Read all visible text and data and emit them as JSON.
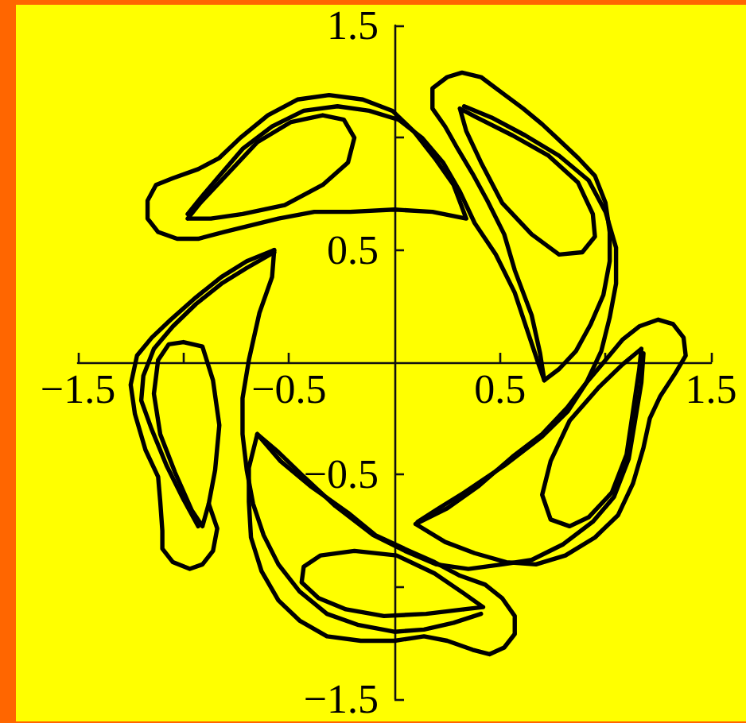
{
  "chart_data": {
    "type": "line",
    "xlim": [
      -1.5,
      1.5
    ],
    "ylim": [
      -1.5,
      1.5
    ],
    "xticks": [
      {
        "value": -1.5,
        "label": "−1.5"
      },
      {
        "value": -1,
        "label": null
      },
      {
        "value": -0.5,
        "label": "−0.5"
      },
      0.5,
      {
        "value": 1,
        "label": null
      },
      1.5
    ],
    "yticks": [
      {
        "value": -1.5,
        "label": "−1.5"
      },
      {
        "value": -1,
        "label": null
      },
      {
        "value": -0.5,
        "label": "−0.5"
      },
      0.5,
      {
        "value": 1,
        "label": null
      },
      1.5
    ],
    "grid": false,
    "marker": "none",
    "series": [
      {
        "color": "#000000",
        "x": [
          0.34,
          0.18,
          0,
          -0.21,
          -0.38,
          -0.55,
          -0.68,
          -0.81,
          -0.93,
          -1.03,
          -1.12,
          -1.17,
          -1.17,
          -1.13,
          -1.05,
          -0.93,
          -0.83,
          -0.73,
          -0.6,
          -0.46,
          -0.31,
          -0.15,
          -0.01,
          0.09,
          0.19,
          0.28,
          0.34,
          0.18
        ],
        "values": [
          0.64,
          0.67,
          0.68,
          0.67,
          0.67,
          0.64,
          0.61,
          0.58,
          0.55,
          0.55,
          0.58,
          0.64,
          0.72,
          0.79,
          0.82,
          0.86,
          0.91,
          1.0,
          1.1,
          1.17,
          1.19,
          1.17,
          1.12,
          1.03,
          0.91,
          0.79,
          0.64,
          0.67
        ]
      },
      {
        "color": "#000000",
        "x": [
          0.71,
          0.68,
          0.63,
          0.57,
          0.48,
          0.38,
          0.31,
          0.23,
          0.13,
          0.02,
          -0.12,
          -0.27,
          -0.43,
          -0.58,
          -0.72,
          -0.83,
          -0.92,
          -0.98
        ],
        "values": [
          -0.08,
          0,
          0.14,
          0.31,
          0.48,
          0.62,
          0.76,
          0.89,
          1.0,
          1.08,
          1.12,
          1.14,
          1.12,
          1.05,
          0.95,
          0.83,
          0.73,
          0.66
        ]
      },
      {
        "color": "#000000",
        "x": [
          -0.98,
          -0.92,
          -0.79,
          -0.65,
          -0.49,
          -0.34,
          -0.24,
          -0.19,
          -0.22,
          -0.34,
          -0.52,
          -0.72,
          -0.87,
          -0.98,
          -0.92
        ],
        "values": [
          0.64,
          0.71,
          0.84,
          0.98,
          1.07,
          1.1,
          1.08,
          1.0,
          0.89,
          0.79,
          0.7,
          0.66,
          0.64,
          0.64,
          0.71
        ]
      },
      {
        "color": "#000000",
        "x": [
          -0.88,
          -0.84,
          -0.86,
          -0.91,
          -0.97,
          -1.05,
          -1.1,
          -1.1,
          -1.11,
          -1.12,
          -1.18,
          -1.23,
          -1.25,
          -1.22,
          -1.15,
          -1.06,
          -0.94,
          -0.82,
          -0.7,
          -0.57
        ],
        "values": [
          -0.63,
          -0.74,
          -0.84,
          -0.9,
          -0.92,
          -0.89,
          -0.83,
          -0.75,
          -0.62,
          -0.51,
          -0.39,
          -0.23,
          -0.1,
          0.03,
          0.11,
          0.19,
          0.29,
          0.38,
          0.45,
          0.5
        ]
      },
      {
        "color": "#000000",
        "x": [
          -0.57,
          -0.7,
          -0.82,
          -0.94,
          -1.05,
          -1.14,
          -1.19,
          -1.2,
          -1.15,
          -1.08,
          -1.0,
          -0.93
        ],
        "values": [
          0.49,
          0.42,
          0.35,
          0.26,
          0.16,
          0.06,
          -0.06,
          -0.17,
          -0.3,
          -0.46,
          -0.61,
          -0.73
        ]
      },
      {
        "color": "#000000",
        "x": [
          -0.91,
          -0.96,
          -1.04,
          -1.11,
          -1.14,
          -1.12,
          -1.07,
          -1.0,
          -0.91,
          -0.86,
          -0.83,
          -0.85,
          -0.88,
          -0.91,
          -0.96
        ],
        "values": [
          -0.73,
          -0.66,
          -0.49,
          -0.32,
          -0.14,
          0.01,
          0.08,
          0.09,
          0.07,
          -0.08,
          -0.28,
          -0.48,
          -0.63,
          -0.73,
          -0.66
        ]
      },
      {
        "color": "#000000",
        "x": [
          0.71,
          0.69,
          0.65,
          0.57,
          0.52,
          0.44,
          0.37,
          0.3,
          0.24,
          0.18,
          0.18,
          0.25,
          0.32,
          0.41,
          0.51,
          0.61,
          0.7,
          0.78,
          0.87,
          0.95,
          1.0,
          1.02,
          1.02,
          0.99,
          0.93,
          0.86,
          0.78,
          0.71,
          0.69
        ],
        "values": [
          -0.08,
          0.04,
          0.21,
          0.41,
          0.57,
          0.72,
          0.84,
          0.95,
          1.05,
          1.13,
          1.22,
          1.27,
          1.29,
          1.27,
          1.2,
          1.13,
          1.06,
          0.99,
          0.91,
          0.83,
          0.71,
          0.58,
          0.45,
          0.3,
          0.17,
          0.05,
          -0.03,
          -0.08,
          0.04
        ]
      },
      {
        "color": "#000000",
        "x": [
          0.11,
          0.21,
          0.33,
          0.52,
          0.7,
          0.82,
          0.91,
          0.98,
          1.02,
          1.05,
          1.05,
          1.0,
          0.92,
          0.78,
          0.62,
          0.46,
          0.33
        ],
        "values": [
          -0.71,
          -0.65,
          -0.58,
          -0.46,
          -0.33,
          -0.22,
          -0.09,
          0.05,
          0.2,
          0.35,
          0.51,
          0.67,
          0.81,
          0.92,
          1.01,
          1.09,
          1.14
        ]
      },
      {
        "color": "#000000",
        "x": [
          0.31,
          0.39,
          0.56,
          0.73,
          0.87,
          0.94,
          0.95,
          0.89,
          0.78,
          0.65,
          0.51,
          0.41,
          0.34,
          0.31,
          0.39
        ],
        "values": [
          1.13,
          1.09,
          1.01,
          0.92,
          0.8,
          0.66,
          0.56,
          0.49,
          0.48,
          0.57,
          0.71,
          0.89,
          1.03,
          1.13,
          1.09
        ]
      },
      {
        "color": "#000000",
        "x": [
          0.1,
          0.25,
          0.4,
          0.56,
          0.7,
          0.82,
          0.91,
          1.0,
          1.08,
          1.16,
          1.25,
          1.32,
          1.37,
          1.38,
          1.33,
          1.26,
          1.21,
          1.18,
          1.13,
          1.06,
          0.95,
          0.81,
          0.67,
          0.53,
          0.38,
          0.24,
          0.1,
          0.25
        ],
        "values": [
          -0.72,
          -0.65,
          -0.55,
          -0.42,
          -0.32,
          -0.2,
          -0.09,
          0.01,
          0.1,
          0.16,
          0.19,
          0.17,
          0.11,
          0.03,
          -0.05,
          -0.15,
          -0.25,
          -0.38,
          -0.54,
          -0.68,
          -0.78,
          -0.86,
          -0.9,
          -0.89,
          -0.85,
          -0.8,
          -0.72,
          -0.65
        ]
      },
      {
        "color": "#000000",
        "x": [
          -0.65,
          -0.55,
          -0.44,
          -0.28,
          -0.1,
          0.05,
          0.2,
          0.35,
          0.51,
          0.65,
          0.8,
          0.94,
          1.04,
          1.11,
          1.14,
          1.17,
          1.18
        ],
        "values": [
          -0.32,
          -0.4,
          -0.5,
          -0.64,
          -0.77,
          -0.84,
          -0.9,
          -0.92,
          -0.9,
          -0.88,
          -0.81,
          -0.71,
          -0.6,
          -0.43,
          -0.26,
          -0.09,
          0.04
        ]
      },
      {
        "color": "#000000",
        "x": [
          1.17,
          1.16,
          1.13,
          1.1,
          1.03,
          0.92,
          0.83,
          0.74,
          0.7,
          0.74,
          0.83,
          0.97,
          1.08,
          1.17,
          1.16
        ],
        "values": [
          0.06,
          -0.03,
          -0.22,
          -0.41,
          -0.58,
          -0.69,
          -0.73,
          -0.7,
          -0.59,
          -0.44,
          -0.26,
          -0.11,
          -0.01,
          0.06,
          -0.03
        ]
      },
      {
        "color": "#000000",
        "x": [
          -0.65,
          -0.54,
          -0.4,
          -0.22,
          -0.09,
          0.07,
          0.19,
          0.31,
          0.43,
          0.51,
          0.57,
          0.57,
          0.52,
          0.45,
          0.37,
          0.25,
          0.14,
          0,
          -0.16,
          -0.32,
          -0.45,
          -0.55,
          -0.63,
          -0.68,
          -0.69,
          -0.69,
          -0.65,
          -0.54
        ],
        "values": [
          -0.32,
          -0.44,
          -0.55,
          -0.67,
          -0.77,
          -0.84,
          -0.89,
          -0.95,
          -0.99,
          -1.05,
          -1.13,
          -1.21,
          -1.27,
          -1.3,
          -1.28,
          -1.24,
          -1.22,
          -1.24,
          -1.24,
          -1.22,
          -1.15,
          -1.06,
          -0.93,
          -0.78,
          -0.62,
          -0.47,
          -0.32,
          -0.44
        ]
      },
      {
        "color": "#000000",
        "x": [
          -0.57,
          -0.58,
          -0.64,
          -0.69,
          -0.72,
          -0.72,
          -0.7,
          -0.67,
          -0.62,
          -0.55,
          -0.45,
          -0.32,
          -0.17,
          0,
          0.14,
          0.28,
          0.41
        ],
        "values": [
          0.5,
          0.38,
          0.22,
          0.01,
          -0.16,
          -0.32,
          -0.48,
          -0.63,
          -0.77,
          -0.9,
          -1.02,
          -1.12,
          -1.17,
          -1.2,
          -1.19,
          -1.16,
          -1.12
        ]
      },
      {
        "color": "#000000",
        "x": [
          0.42,
          0.33,
          0.15,
          -0.05,
          -0.23,
          -0.36,
          -0.44,
          -0.43,
          -0.35,
          -0.19,
          0.01,
          0.19,
          0.33,
          0.42,
          0.33
        ],
        "values": [
          -1.09,
          -1.1,
          -1.12,
          -1.13,
          -1.1,
          -1.05,
          -0.98,
          -0.91,
          -0.86,
          -0.84,
          -0.86,
          -0.94,
          -1.03,
          -1.09,
          -1.1
        ]
      }
    ]
  }
}
